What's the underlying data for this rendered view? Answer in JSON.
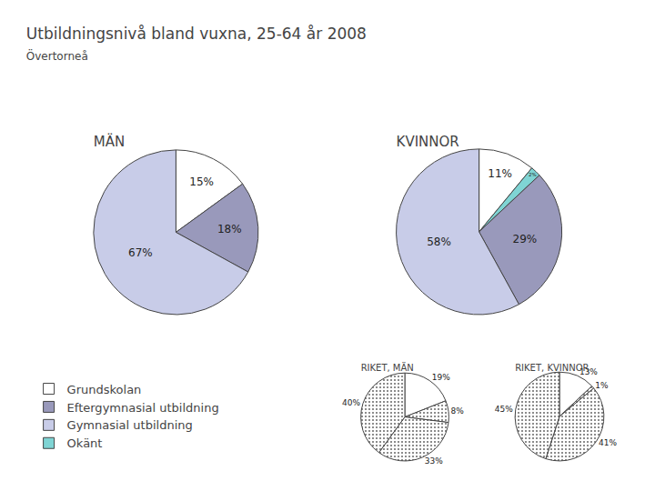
{
  "title": "Utbildningsnivå bland vuxna, 25-64 år 2008",
  "subtitle": "Övertorneå",
  "chart_data": [
    {
      "type": "pie",
      "title": "MÄN",
      "categories": [
        "Grundskolan",
        "Eftergymnasial utbildning",
        "Gymnasial utbildning"
      ],
      "values": [
        15,
        18,
        67
      ],
      "value_labels": [
        "15%",
        "18%",
        "67%"
      ],
      "colors": [
        "#ffffff",
        "#9999bb",
        "#c8cce8"
      ],
      "data_labels": true,
      "legend": "lower left"
    },
    {
      "type": "pie",
      "title": "KVINNOR",
      "categories": [
        "Grundskolan",
        "Okänt",
        "Eftergymnasial utbildning",
        "Gymnasial utbildning"
      ],
      "values": [
        11,
        2,
        29,
        58
      ],
      "value_labels": [
        "11%",
        "2%",
        "29%",
        "58%"
      ],
      "colors": [
        "#ffffff",
        "#7fd4d4",
        "#9999bb",
        "#c8cce8"
      ],
      "data_labels": true,
      "legend": "lower left"
    },
    {
      "type": "pie",
      "title": "RIKET, MÄN",
      "values": [
        19,
        8,
        33,
        40
      ],
      "value_labels": [
        "19%",
        "8%",
        "33%",
        "40%"
      ],
      "colors": [
        "#ffffff",
        "#dddddd",
        "#aaaaaa",
        "#cccccc"
      ],
      "data_labels": true
    },
    {
      "type": "pie",
      "title": "RIKET, KVINNOR",
      "values": [
        13,
        1,
        41,
        45
      ],
      "value_labels": [
        "13%",
        "1%",
        "41%",
        "45%"
      ],
      "colors": [
        "#ffffff",
        "#dddddd",
        "#aaaaaa",
        "#cccccc"
      ],
      "data_labels": true
    }
  ]
}
